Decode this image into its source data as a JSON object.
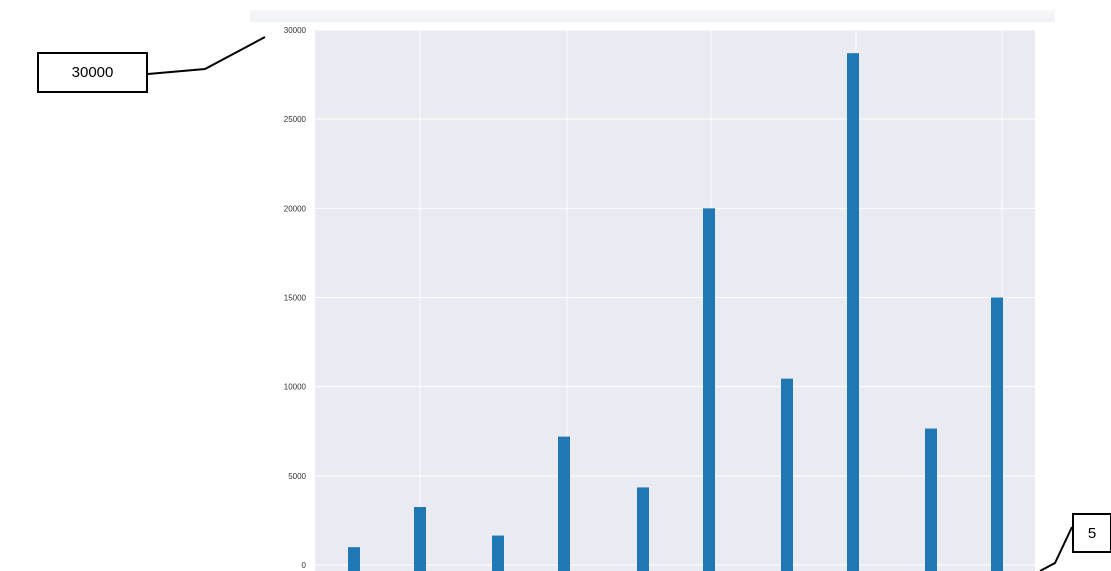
{
  "callouts": {
    "left_label": "30000",
    "right_label": "5"
  },
  "colors": {
    "plot_background": "#eaeaf2",
    "grid": "#ffffff",
    "bar": "#1f77b4",
    "tick_text": "#333333",
    "callout_line": "#000000"
  },
  "chart_data": {
    "type": "bar",
    "title": "",
    "xlabel": "",
    "ylabel": "",
    "ylim": [
      0,
      30000
    ],
    "yticks": [
      0,
      5000,
      10000,
      15000,
      20000,
      25000,
      30000
    ],
    "grid": true,
    "values": [
      1000,
      3250,
      1650,
      7200,
      4350,
      20000,
      10450,
      28700,
      7650,
      15000
    ]
  }
}
